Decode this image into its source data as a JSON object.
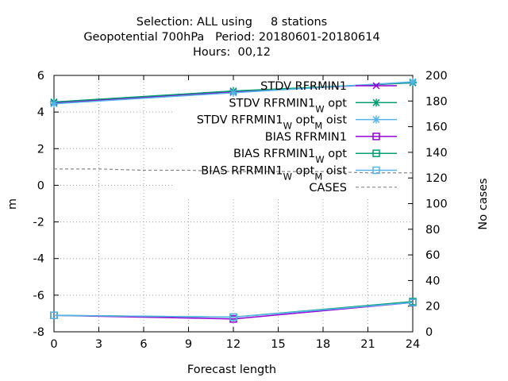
{
  "title_lines": [
    "Selection: ALL using     8 stations",
    "Geopotential 700hPa   Period: 20180601-20180614",
    "Hours:  00,12"
  ],
  "chart_data": {
    "type": "line",
    "title": "Selection: ALL using     8 stations\nGeopotential 700hPa   Period: 20180601-20180614\nHours:  00,12",
    "xlabel": "Forecast length",
    "ylabel": "m",
    "y2label": "No cases",
    "xlim": [
      0,
      24
    ],
    "ylim": [
      -8,
      6
    ],
    "y2lim": [
      0,
      200
    ],
    "xticks": [
      0,
      3,
      6,
      9,
      12,
      15,
      18,
      21,
      24
    ],
    "yticks": [
      -8,
      -6,
      -4,
      -2,
      0,
      2,
      4,
      6
    ],
    "y2ticks": [
      0,
      20,
      40,
      60,
      80,
      100,
      120,
      140,
      160,
      180,
      200
    ],
    "grid": true,
    "legend_position": "top-right",
    "series": [
      {
        "name": "STDV RFRMIN1",
        "axis": "y",
        "color": "#9400d3",
        "marker": "x",
        "x": [
          0,
          12,
          24
        ],
        "values": [
          4.5,
          5.1,
          5.6
        ]
      },
      {
        "name": "STDV RFRMIN1_W opt",
        "axis": "y",
        "color": "#009e73",
        "marker": "star",
        "x": [
          0,
          12,
          24
        ],
        "values": [
          4.55,
          5.15,
          5.6
        ]
      },
      {
        "name": "STDV RFRMIN1_W opt_M oist",
        "axis": "y",
        "color": "#56b4e9",
        "marker": "star",
        "x": [
          0,
          12,
          24
        ],
        "values": [
          4.45,
          5.05,
          5.65
        ]
      },
      {
        "name": "BIAS RFRMIN1",
        "axis": "y",
        "color": "#9400d3",
        "marker": "square",
        "x": [
          0,
          12,
          24
        ],
        "values": [
          -7.1,
          -7.3,
          -6.4
        ]
      },
      {
        "name": "BIAS RFRMIN1_W opt",
        "axis": "y",
        "color": "#009e73",
        "marker": "square",
        "x": [
          0,
          12,
          24
        ],
        "values": [
          -7.1,
          -7.2,
          -6.35
        ]
      },
      {
        "name": "BIAS RFRMIN1_W opt_M oist",
        "axis": "y",
        "color": "#56b4e9",
        "marker": "square",
        "x": [
          0,
          12,
          24
        ],
        "values": [
          -7.1,
          -7.2,
          -6.4
        ]
      },
      {
        "name": "CASES",
        "axis": "y2",
        "color": "#888888",
        "marker": "none",
        "dashed": true,
        "x": [
          0,
          3,
          6,
          9,
          12,
          15,
          18,
          21,
          24
        ],
        "values": [
          127,
          127,
          126,
          126,
          125,
          125,
          125,
          124,
          124
        ]
      }
    ]
  }
}
